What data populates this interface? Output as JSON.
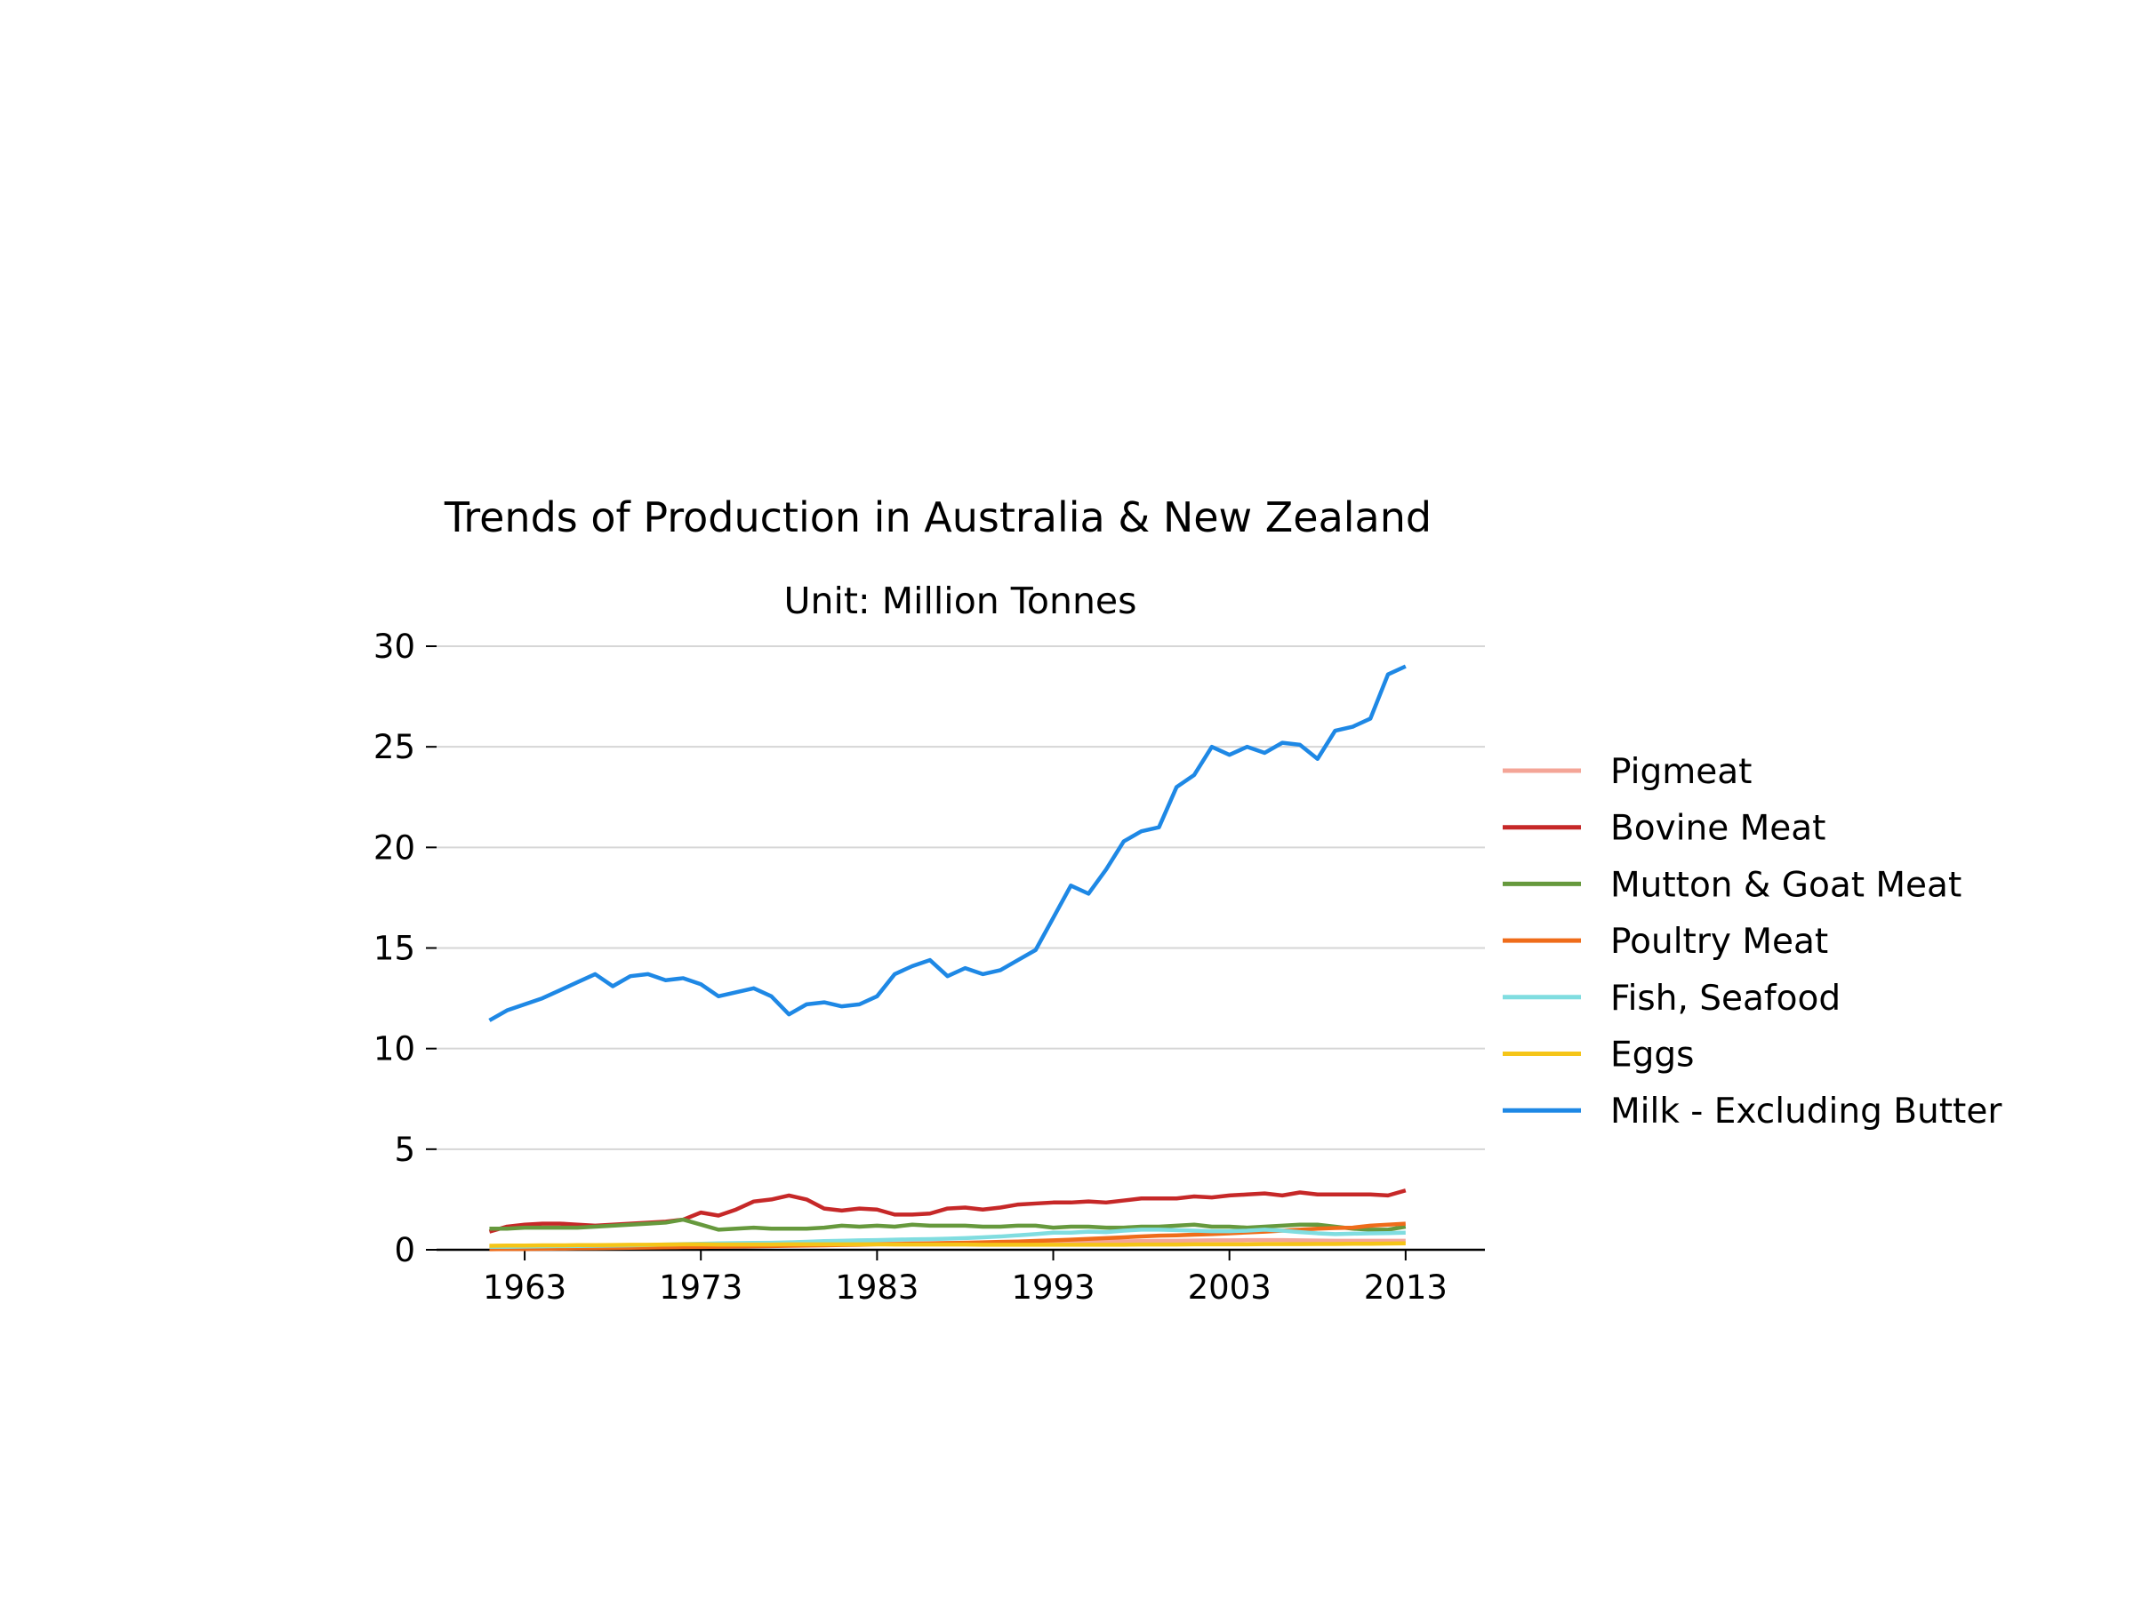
{
  "chart_data": {
    "type": "line",
    "title": "Trends of Production in Australia & New Zealand",
    "subtitle": "Unit: Million Tonnes",
    "xlabel": "",
    "ylabel": "",
    "xlim": [
      1958,
      2017.5
    ],
    "ylim": [
      0,
      30
    ],
    "x_ticks": [
      1963,
      1973,
      1983,
      1993,
      2003,
      2013
    ],
    "y_ticks": [
      0,
      5,
      10,
      15,
      20,
      25,
      30
    ],
    "grid": "horizontal",
    "legend_position": "right",
    "x": [
      1961,
      1962,
      1963,
      1964,
      1965,
      1966,
      1967,
      1968,
      1969,
      1970,
      1971,
      1972,
      1973,
      1974,
      1975,
      1976,
      1977,
      1978,
      1979,
      1980,
      1981,
      1982,
      1983,
      1984,
      1985,
      1986,
      1987,
      1988,
      1989,
      1990,
      1991,
      1992,
      1993,
      1994,
      1995,
      1996,
      1997,
      1998,
      1999,
      2000,
      2001,
      2002,
      2003,
      2004,
      2005,
      2006,
      2007,
      2008,
      2009,
      2010,
      2011,
      2012,
      2013
    ],
    "series": [
      {
        "name": "Pigmeat",
        "color": "#f4a597",
        "values": [
          0.15,
          0.16,
          0.16,
          0.17,
          0.17,
          0.18,
          0.18,
          0.19,
          0.2,
          0.21,
          0.22,
          0.23,
          0.24,
          0.24,
          0.25,
          0.25,
          0.26,
          0.26,
          0.27,
          0.28,
          0.29,
          0.3,
          0.3,
          0.31,
          0.32,
          0.33,
          0.34,
          0.35,
          0.36,
          0.37,
          0.38,
          0.38,
          0.39,
          0.4,
          0.41,
          0.42,
          0.42,
          0.43,
          0.44,
          0.45,
          0.46,
          0.47,
          0.47,
          0.48,
          0.48,
          0.48,
          0.47,
          0.46,
          0.45,
          0.45,
          0.45,
          0.45,
          0.45
        ]
      },
      {
        "name": "Bovine Meat",
        "color": "#c62828",
        "values": [
          0.9,
          1.15,
          1.25,
          1.3,
          1.3,
          1.25,
          1.2,
          1.25,
          1.3,
          1.35,
          1.4,
          1.5,
          1.85,
          1.7,
          2.0,
          2.4,
          2.5,
          2.7,
          2.5,
          2.05,
          1.95,
          2.05,
          2.0,
          1.75,
          1.75,
          1.8,
          2.05,
          2.1,
          2.0,
          2.1,
          2.25,
          2.3,
          2.35,
          2.35,
          2.4,
          2.35,
          2.45,
          2.55,
          2.55,
          2.55,
          2.65,
          2.6,
          2.7,
          2.75,
          2.8,
          2.7,
          2.85,
          2.75,
          2.75,
          2.75,
          2.75,
          2.7,
          2.95
        ]
      },
      {
        "name": "Mutton & Goat Meat",
        "color": "#66993d",
        "values": [
          1.05,
          1.05,
          1.1,
          1.1,
          1.1,
          1.1,
          1.15,
          1.2,
          1.25,
          1.3,
          1.35,
          1.5,
          1.25,
          1.0,
          1.05,
          1.1,
          1.05,
          1.05,
          1.05,
          1.1,
          1.2,
          1.15,
          1.2,
          1.15,
          1.25,
          1.2,
          1.2,
          1.2,
          1.15,
          1.15,
          1.2,
          1.2,
          1.1,
          1.15,
          1.15,
          1.1,
          1.1,
          1.15,
          1.15,
          1.2,
          1.25,
          1.15,
          1.15,
          1.1,
          1.15,
          1.2,
          1.25,
          1.25,
          1.15,
          1.05,
          1.0,
          1.0,
          1.15
        ]
      },
      {
        "name": "Poultry Meat",
        "color": "#ef6c1a",
        "values": [
          0.03,
          0.04,
          0.04,
          0.05,
          0.06,
          0.07,
          0.08,
          0.09,
          0.1,
          0.11,
          0.12,
          0.13,
          0.14,
          0.15,
          0.16,
          0.17,
          0.18,
          0.2,
          0.21,
          0.22,
          0.24,
          0.25,
          0.27,
          0.28,
          0.3,
          0.31,
          0.33,
          0.35,
          0.37,
          0.39,
          0.41,
          0.44,
          0.47,
          0.5,
          0.54,
          0.58,
          0.62,
          0.66,
          0.7,
          0.72,
          0.75,
          0.78,
          0.82,
          0.86,
          0.9,
          0.95,
          1.0,
          1.05,
          1.08,
          1.1,
          1.2,
          1.25,
          1.3
        ]
      },
      {
        "name": "Fish, Seafood",
        "color": "#80dde0",
        "values": [
          0.15,
          0.15,
          0.16,
          0.17,
          0.18,
          0.19,
          0.2,
          0.21,
          0.22,
          0.24,
          0.26,
          0.28,
          0.3,
          0.32,
          0.33,
          0.34,
          0.35,
          0.37,
          0.4,
          0.43,
          0.45,
          0.47,
          0.48,
          0.5,
          0.52,
          0.53,
          0.55,
          0.58,
          0.62,
          0.66,
          0.72,
          0.78,
          0.85,
          0.85,
          0.9,
          0.88,
          0.95,
          1.0,
          1.0,
          0.98,
          0.95,
          0.92,
          0.92,
          0.95,
          1.0,
          0.95,
          0.88,
          0.82,
          0.78,
          0.8,
          0.82,
          0.83,
          0.85
        ]
      },
      {
        "name": "Eggs",
        "color": "#f5c518",
        "values": [
          0.2,
          0.21,
          0.21,
          0.22,
          0.22,
          0.23,
          0.23,
          0.24,
          0.25,
          0.25,
          0.26,
          0.27,
          0.27,
          0.26,
          0.26,
          0.26,
          0.26,
          0.27,
          0.27,
          0.27,
          0.27,
          0.27,
          0.27,
          0.26,
          0.26,
          0.26,
          0.26,
          0.26,
          0.25,
          0.25,
          0.25,
          0.25,
          0.25,
          0.25,
          0.25,
          0.25,
          0.25,
          0.26,
          0.26,
          0.26,
          0.27,
          0.27,
          0.27,
          0.27,
          0.28,
          0.28,
          0.28,
          0.29,
          0.29,
          0.3,
          0.3,
          0.31,
          0.32
        ]
      },
      {
        "name": "Milk - Excluding Butter",
        "color": "#1e88e5",
        "values": [
          11.4,
          11.9,
          12.2,
          12.5,
          12.9,
          13.3,
          13.7,
          13.1,
          13.6,
          13.7,
          13.4,
          13.5,
          13.2,
          12.6,
          12.8,
          13.0,
          12.6,
          11.7,
          12.2,
          12.3,
          12.1,
          12.2,
          12.6,
          13.7,
          14.1,
          14.4,
          13.6,
          14.0,
          13.7,
          13.9,
          14.4,
          14.9,
          16.5,
          18.1,
          17.7,
          18.9,
          20.3,
          20.8,
          21.0,
          23.0,
          23.6,
          25.0,
          24.6,
          25.0,
          24.7,
          25.2,
          25.1,
          24.4,
          25.8,
          26.0,
          26.4,
          28.6,
          29.0
        ]
      }
    ]
  }
}
